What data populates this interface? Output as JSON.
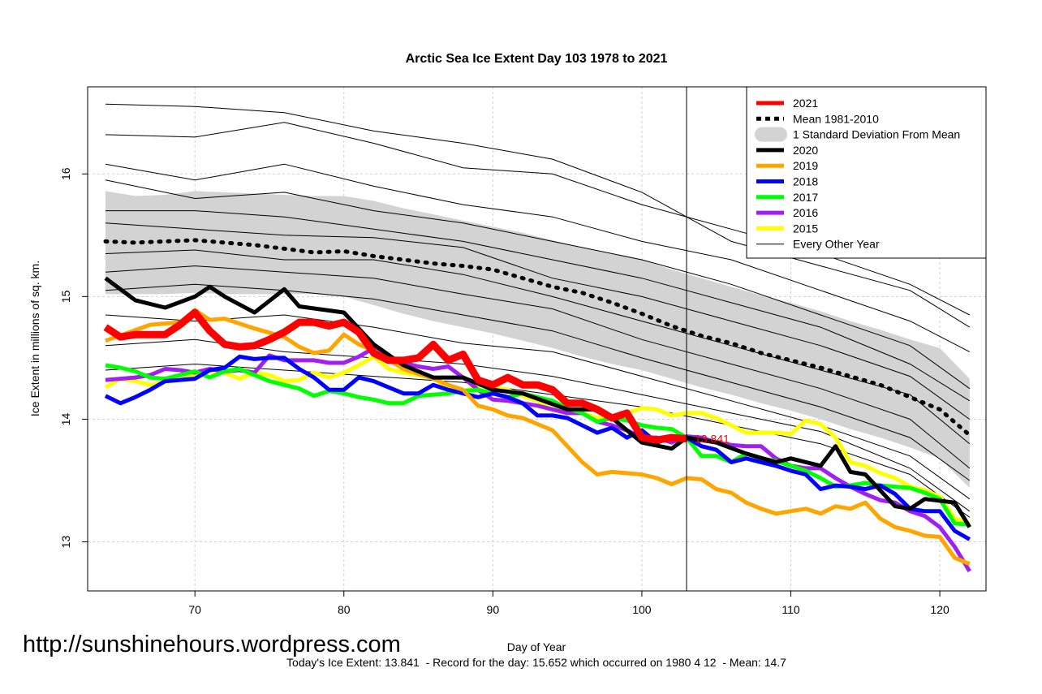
{
  "chart_data": {
    "type": "line",
    "title": "Arctic Sea Ice Extent Day 103 1978 to 2021",
    "xlabel": "Day of Year",
    "ylabel": "Ice Extent in millions of sq. km.",
    "xlim": [
      62.8,
      123.1
    ],
    "ylim": [
      12.6,
      16.71
    ],
    "x_ticks": [
      70,
      80,
      90,
      100,
      110,
      120
    ],
    "y_ticks": [
      13,
      14,
      15,
      16
    ],
    "grid": true,
    "legend_position": "top-right",
    "current_day": 103,
    "current_value_label": "13.841",
    "footer": "Today's Ice Extent: 13.841  - Record for the day: 15.652 which occurred on 1980 4 12  - Mean: 14.7",
    "watermark": "http://sunshinehours.wordpress.com",
    "legend": [
      {
        "label": "2021",
        "color": "#ff0000",
        "style": "thick"
      },
      {
        "label": "Mean 1981-2010",
        "color": "#000000",
        "style": "dotted"
      },
      {
        "label": "1 Standard Deviation From Mean",
        "color": "#d3d3d3",
        "style": "band"
      },
      {
        "label": "2020",
        "color": "#000000",
        "style": "thick"
      },
      {
        "label": "2019",
        "color": "#ffa500",
        "style": "thick"
      },
      {
        "label": "2018",
        "color": "#0000ff",
        "style": "thick"
      },
      {
        "label": "2017",
        "color": "#00ff00",
        "style": "thick"
      },
      {
        "label": "2016",
        "color": "#a020f0",
        "style": "thick"
      },
      {
        "label": "2015",
        "color": "#ffff00",
        "style": "thick"
      },
      {
        "label": "Every Other Year",
        "color": "#000000",
        "style": "thin"
      }
    ],
    "sd_band": {
      "x": [
        64,
        66,
        68,
        70,
        72,
        74,
        76,
        78,
        80,
        82,
        84,
        86,
        88,
        90,
        92,
        94,
        96,
        98,
        100,
        102,
        104,
        106,
        108,
        110,
        112,
        114,
        116,
        118,
        120,
        122
      ],
      "upper": [
        15.86,
        15.82,
        15.83,
        15.86,
        15.85,
        15.84,
        15.83,
        15.82,
        15.82,
        15.78,
        15.72,
        15.67,
        15.62,
        15.57,
        15.52,
        15.46,
        15.4,
        15.35,
        15.3,
        15.22,
        15.15,
        15.08,
        15.01,
        14.95,
        14.88,
        14.8,
        14.73,
        14.65,
        14.58,
        14.33
      ],
      "lower": [
        15.02,
        15.02,
        15.02,
        15.03,
        15.02,
        15.02,
        15.02,
        15.02,
        15.0,
        14.93,
        14.86,
        14.8,
        14.75,
        14.7,
        14.64,
        14.58,
        14.51,
        14.45,
        14.4,
        14.33,
        14.26,
        14.2,
        14.13,
        14.07,
        14.0,
        13.92,
        13.85,
        13.77,
        13.68,
        13.44
      ]
    },
    "mean": {
      "x": [
        64,
        66,
        68,
        70,
        72,
        74,
        76,
        78,
        80,
        82,
        84,
        86,
        88,
        90,
        92,
        94,
        96,
        98,
        100,
        102,
        104,
        106,
        108,
        110,
        112,
        114,
        116,
        118,
        120,
        122
      ],
      "values": [
        15.45,
        15.44,
        15.45,
        15.46,
        15.44,
        15.42,
        15.39,
        15.36,
        15.37,
        15.33,
        15.3,
        15.27,
        15.25,
        15.22,
        15.15,
        15.08,
        15.03,
        14.95,
        14.86,
        14.76,
        14.68,
        14.62,
        14.54,
        14.48,
        14.42,
        14.35,
        14.28,
        14.18,
        14.08,
        13.87
      ]
    },
    "other_years": {
      "x": [
        64,
        70,
        76,
        82,
        88,
        94,
        100,
        106,
        112,
        118,
        122
      ],
      "series": [
        [
          16.57,
          16.55,
          16.5,
          16.35,
          16.25,
          16.12,
          15.85,
          15.45,
          15.25,
          15.05,
          14.75
        ],
        [
          16.32,
          16.3,
          16.42,
          16.25,
          16.05,
          16.0,
          15.75,
          15.55,
          15.35,
          15.1,
          14.85
        ],
        [
          16.08,
          15.95,
          16.08,
          15.9,
          15.75,
          15.65,
          15.45,
          15.3,
          15.05,
          14.8,
          14.55
        ],
        [
          15.95,
          15.8,
          15.85,
          15.7,
          15.6,
          15.45,
          15.3,
          15.1,
          14.85,
          14.6,
          14.25
        ],
        [
          15.7,
          15.7,
          15.65,
          15.55,
          15.45,
          15.3,
          15.15,
          14.95,
          14.75,
          14.45,
          14.15
        ],
        [
          15.6,
          15.55,
          15.5,
          15.48,
          15.4,
          15.15,
          15.0,
          14.8,
          14.6,
          14.35,
          14.0
        ],
        [
          15.35,
          15.38,
          15.3,
          15.3,
          15.18,
          15.0,
          14.8,
          14.6,
          14.4,
          14.2,
          13.8
        ],
        [
          15.2,
          15.25,
          15.2,
          15.15,
          15.02,
          14.9,
          14.65,
          14.45,
          14.25,
          14.0,
          13.6
        ],
        [
          15.05,
          15.1,
          15.05,
          14.98,
          14.85,
          14.72,
          14.5,
          14.3,
          14.1,
          13.85,
          13.5
        ],
        [
          14.85,
          14.8,
          14.85,
          14.75,
          14.62,
          14.55,
          14.35,
          14.15,
          13.95,
          13.7,
          13.35
        ],
        [
          14.6,
          14.65,
          14.55,
          14.5,
          14.45,
          14.35,
          14.2,
          14.05,
          13.9,
          13.6,
          13.25
        ],
        [
          14.4,
          14.45,
          14.4,
          14.35,
          14.3,
          14.2,
          14.1,
          13.95,
          13.8,
          13.55,
          13.2
        ]
      ]
    },
    "series": [
      {
        "name": "2015",
        "color": "#ffff00",
        "x_start": 64,
        "values": [
          14.26,
          14.33,
          14.31,
          14.28,
          14.3,
          14.32,
          14.36,
          14.39,
          14.38,
          14.33,
          14.38,
          14.36,
          14.31,
          14.32,
          14.38,
          14.34,
          14.38,
          14.44,
          14.51,
          14.41,
          14.38,
          14.36,
          14.34,
          14.24,
          14.22,
          14.28,
          14.26,
          14.24,
          14.19,
          14.15,
          14.08,
          14.08,
          14.05,
          14.01,
          14.01,
          14.05,
          14.09,
          14.08,
          14.03,
          14.05,
          14.05,
          14.01,
          13.95,
          13.89,
          13.89,
          13.89,
          13.88,
          13.99,
          13.96,
          13.85,
          13.65,
          13.62,
          13.56,
          13.52,
          13.45,
          13.42,
          13.37,
          13.19,
          13.15
        ]
      },
      {
        "name": "2016",
        "color": "#a020f0",
        "x_start": 64,
        "values": [
          14.32,
          14.33,
          14.34,
          14.36,
          14.41,
          14.4,
          14.38,
          14.41,
          14.39,
          14.4,
          14.38,
          14.52,
          14.48,
          14.48,
          14.48,
          14.46,
          14.46,
          14.51,
          14.58,
          14.51,
          14.46,
          14.43,
          14.41,
          14.43,
          14.34,
          14.24,
          14.16,
          14.15,
          14.13,
          14.11,
          14.08,
          14.05,
          14.05,
          13.98,
          13.95,
          13.91,
          13.85,
          13.85,
          13.81,
          13.86,
          13.85,
          13.81,
          13.79,
          13.78,
          13.78,
          13.68,
          13.62,
          13.6,
          13.6,
          13.52,
          13.45,
          13.39,
          13.34,
          13.32,
          13.25,
          13.21,
          13.12,
          12.96,
          12.76
        ]
      },
      {
        "name": "2017",
        "color": "#00ff00",
        "x_start": 64,
        "values": [
          14.44,
          14.42,
          14.39,
          14.34,
          14.33,
          14.36,
          14.39,
          14.34,
          14.39,
          14.41,
          14.36,
          14.31,
          14.28,
          14.25,
          14.19,
          14.23,
          14.21,
          14.18,
          14.16,
          14.13,
          14.13,
          14.19,
          14.2,
          14.21,
          14.23,
          14.24,
          14.21,
          14.18,
          14.21,
          14.18,
          14.15,
          14.09,
          14.05,
          13.98,
          14.01,
          13.99,
          13.95,
          13.93,
          13.92,
          13.85,
          13.7,
          13.7,
          13.65,
          13.72,
          13.68,
          13.66,
          13.62,
          13.58,
          13.52,
          13.45,
          13.46,
          13.48,
          13.46,
          13.45,
          13.44,
          13.4,
          13.35,
          13.15,
          13.14
        ]
      },
      {
        "name": "2018",
        "color": "#0000ff",
        "x_start": 64,
        "values": [
          14.19,
          14.13,
          14.18,
          14.24,
          14.31,
          14.32,
          14.33,
          14.4,
          14.42,
          14.51,
          14.49,
          14.5,
          14.5,
          14.41,
          14.34,
          14.24,
          14.24,
          14.34,
          14.31,
          14.26,
          14.21,
          14.21,
          14.28,
          14.24,
          14.21,
          14.18,
          14.21,
          14.18,
          14.13,
          14.03,
          14.03,
          14.01,
          13.95,
          13.89,
          13.93,
          13.85,
          13.91,
          13.81,
          13.85,
          13.85,
          13.78,
          13.75,
          13.65,
          13.68,
          13.65,
          13.62,
          13.58,
          13.55,
          13.43,
          13.46,
          13.45,
          13.43,
          13.46,
          13.39,
          13.27,
          13.25,
          13.25,
          13.09,
          13.02
        ]
      },
      {
        "name": "2019",
        "color": "#ffa500",
        "x": [
          64,
          67,
          69,
          70,
          71,
          72,
          74,
          76,
          77,
          78,
          79,
          80,
          81,
          82,
          84,
          86,
          87,
          88,
          89,
          90,
          91,
          92,
          94,
          95,
          96,
          97,
          98,
          100,
          101,
          102,
          103,
          104,
          105,
          106,
          107,
          108,
          109,
          110,
          111,
          112,
          113,
          114,
          115,
          116,
          117,
          118,
          119,
          120,
          121,
          122
        ],
        "values": [
          14.64,
          14.77,
          14.79,
          14.89,
          14.81,
          14.82,
          14.74,
          14.67,
          14.59,
          14.54,
          14.56,
          14.69,
          14.61,
          14.56,
          14.41,
          14.33,
          14.28,
          14.24,
          14.11,
          14.08,
          14.03,
          14.01,
          13.91,
          13.78,
          13.65,
          13.55,
          13.57,
          13.55,
          13.52,
          13.47,
          13.52,
          13.51,
          13.43,
          13.4,
          13.32,
          13.27,
          13.23,
          13.25,
          13.27,
          13.23,
          13.29,
          13.27,
          13.32,
          13.19,
          13.12,
          13.09,
          13.05,
          13.04,
          12.87,
          12.82
        ]
      },
      {
        "name": "2020",
        "color": "#000000",
        "x": [
          64,
          66,
          68,
          70,
          71,
          72,
          74,
          76,
          77,
          80,
          81,
          82,
          84,
          86,
          88,
          90,
          92,
          95,
          97,
          98,
          100,
          102,
          103,
          105,
          107,
          109,
          110,
          112,
          113,
          114,
          115,
          117,
          118,
          119,
          121,
          122
        ],
        "values": [
          15.15,
          14.97,
          14.91,
          15.0,
          15.08,
          15.0,
          14.87,
          15.06,
          14.92,
          14.87,
          14.74,
          14.61,
          14.44,
          14.34,
          14.34,
          14.24,
          14.21,
          14.08,
          14.08,
          14.01,
          13.81,
          13.76,
          13.85,
          13.81,
          13.72,
          13.65,
          13.68,
          13.62,
          13.78,
          13.57,
          13.55,
          13.29,
          13.27,
          13.35,
          13.32,
          13.12
        ]
      },
      {
        "name": "2021",
        "color": "#ff0000",
        "x_start": 64,
        "values": [
          14.75,
          14.67,
          14.69,
          14.69,
          14.69,
          14.77,
          14.87,
          14.72,
          14.61,
          14.59,
          14.6,
          14.65,
          14.71,
          14.79,
          14.79,
          14.76,
          14.79,
          14.71,
          14.54,
          14.48,
          14.48,
          14.5,
          14.61,
          14.48,
          14.53,
          14.32,
          14.28,
          14.34,
          14.28,
          14.28,
          14.24,
          14.13,
          14.13,
          14.08,
          14.01,
          14.05,
          13.85,
          13.83,
          13.85,
          13.841
        ]
      }
    ]
  }
}
